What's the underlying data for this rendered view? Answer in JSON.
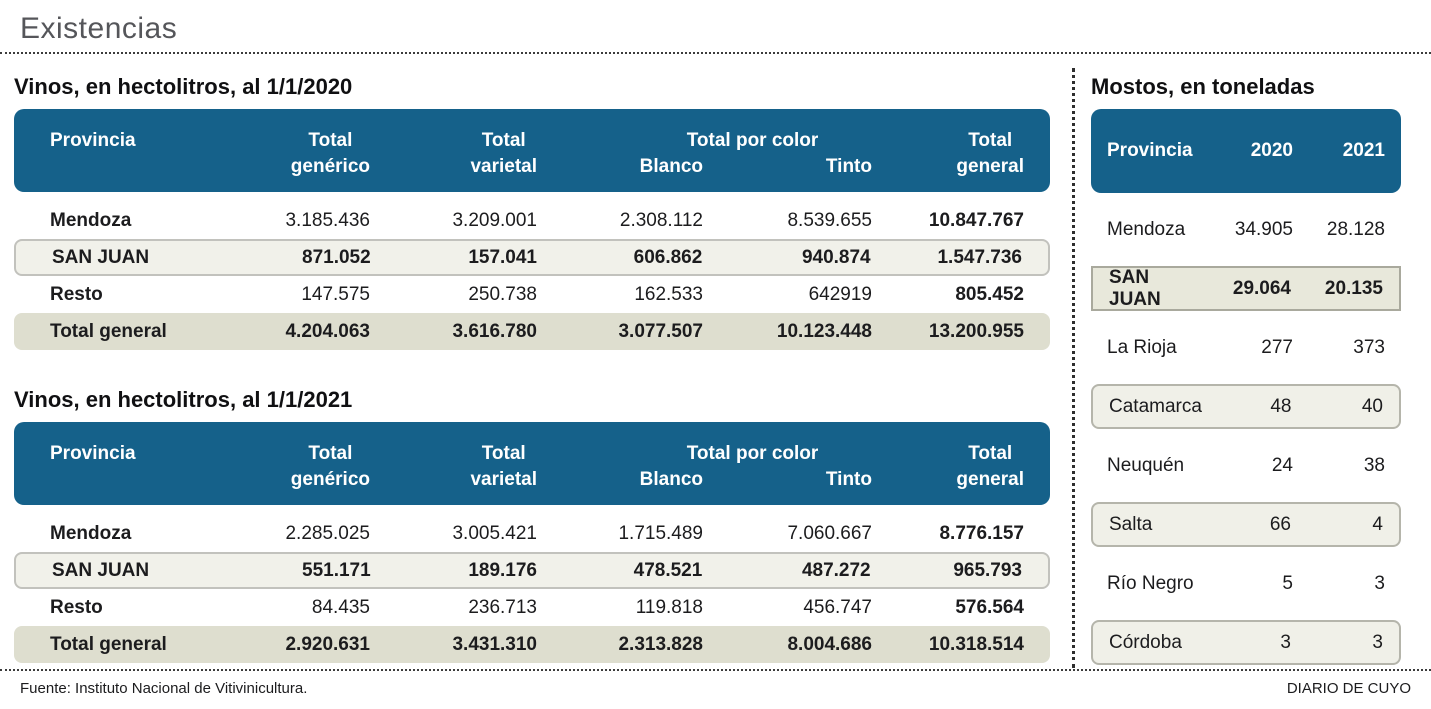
{
  "page": {
    "title": "Existencias",
    "source": "Fuente: Instituto Nacional de Vitivinicultura.",
    "brand": "DIARIO DE CUYO"
  },
  "colors": {
    "header_bg": "#15618a",
    "band_light_bg": "#f1f1ea",
    "band_total_bg": "#dedecf",
    "box_bg": "#f0f0e8",
    "box_border": "#b5b5ab",
    "title_gray": "#55565a"
  },
  "wine_header": {
    "provincia": "Provincia",
    "generico": [
      "Total",
      "genérico"
    ],
    "varietal": [
      "Total",
      "varietal"
    ],
    "por_color": "Total por color",
    "blanco": "Blanco",
    "tinto": "Tinto",
    "general": [
      "Total",
      "general"
    ]
  },
  "wine_tables": [
    {
      "title": "Vinos, en hectolitros, al 1/1/2020",
      "rows": [
        {
          "name": "Mendoza",
          "values": [
            "3.185.436",
            "3.209.001",
            "2.308.112",
            "8.539.655",
            "10.847.767"
          ]
        },
        {
          "name": "SAN JUAN",
          "values": [
            "871.052",
            "157.041",
            "606.862",
            "940.874",
            "1.547.736"
          ]
        },
        {
          "name": "Resto",
          "values": [
            "147.575",
            "250.738",
            "162.533",
            "642919",
            "805.452"
          ]
        },
        {
          "name": "Total general",
          "values": [
            "4.204.063",
            "3.616.780",
            "3.077.507",
            "10.123.448",
            "13.200.955"
          ]
        }
      ]
    },
    {
      "title": "Vinos, en hectolitros, al 1/1/2021",
      "rows": [
        {
          "name": "Mendoza",
          "values": [
            "2.285.025",
            "3.005.421",
            "1.715.489",
            "7.060.667",
            "8.776.157"
          ]
        },
        {
          "name": "SAN JUAN",
          "values": [
            "551.171",
            "189.176",
            "478.521",
            "487.272",
            "965.793"
          ]
        },
        {
          "name": "Resto",
          "values": [
            "84.435",
            "236.713",
            "119.818",
            "456.747",
            "576.564"
          ]
        },
        {
          "name": "Total general",
          "values": [
            "2.920.631",
            "3.431.310",
            "2.313.828",
            "8.004.686",
            "10.318.514"
          ]
        }
      ]
    }
  ],
  "mostos": {
    "title": "Mostos, en toneladas",
    "header": [
      "Provincia",
      "2020",
      "2021"
    ],
    "rows": [
      {
        "name": "Mendoza",
        "values": [
          "34.905",
          "28.128"
        ]
      },
      {
        "name": "SAN JUAN",
        "values": [
          "29.064",
          "20.135"
        ]
      },
      {
        "name": "La Rioja",
        "values": [
          "277",
          "373"
        ]
      },
      {
        "name": "Catamarca",
        "values": [
          "48",
          "40"
        ]
      },
      {
        "name": "Neuquén",
        "values": [
          "24",
          "38"
        ]
      },
      {
        "name": "Salta",
        "values": [
          "66",
          "4"
        ]
      },
      {
        "name": "Río Negro",
        "values": [
          "5",
          "3"
        ]
      },
      {
        "name": "Córdoba",
        "values": [
          "3",
          "3"
        ]
      }
    ]
  },
  "chart_data": [
    {
      "type": "table",
      "title": "Vinos, en hectolitros, al 1/1/2020",
      "columns": [
        "Provincia",
        "Total genérico",
        "Total varietal",
        "Blanco",
        "Tinto",
        "Total general"
      ],
      "rows": [
        [
          "Mendoza",
          3185436,
          3209001,
          2308112,
          8539655,
          10847767
        ],
        [
          "San Juan",
          871052,
          157041,
          606862,
          940874,
          1547736
        ],
        [
          "Resto",
          147575,
          250738,
          162533,
          642919,
          805452
        ],
        [
          "Total general",
          4204063,
          3616780,
          3077507,
          10123448,
          13200955
        ]
      ]
    },
    {
      "type": "table",
      "title": "Vinos, en hectolitros, al 1/1/2021",
      "columns": [
        "Provincia",
        "Total genérico",
        "Total varietal",
        "Blanco",
        "Tinto",
        "Total general"
      ],
      "rows": [
        [
          "Mendoza",
          2285025,
          3005421,
          1715489,
          7060667,
          8776157
        ],
        [
          "San Juan",
          551171,
          189176,
          478521,
          487272,
          965793
        ],
        [
          "Resto",
          84435,
          236713,
          119818,
          456747,
          576564
        ],
        [
          "Total general",
          2920631,
          3431310,
          2313828,
          8004686,
          10318514
        ]
      ]
    },
    {
      "type": "table",
      "title": "Mostos, en toneladas",
      "columns": [
        "Provincia",
        "2020",
        "2021"
      ],
      "rows": [
        [
          "Mendoza",
          34905,
          28128
        ],
        [
          "San Juan",
          29064,
          20135
        ],
        [
          "La Rioja",
          277,
          373
        ],
        [
          "Catamarca",
          48,
          40
        ],
        [
          "Neuquén",
          24,
          38
        ],
        [
          "Salta",
          66,
          4
        ],
        [
          "Río Negro",
          5,
          3
        ],
        [
          "Córdoba",
          3,
          3
        ]
      ]
    }
  ]
}
